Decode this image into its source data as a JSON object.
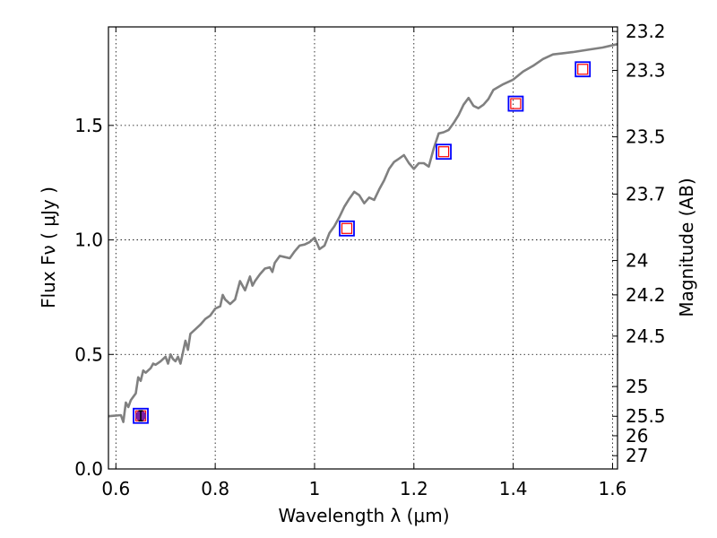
{
  "chart_data": {
    "type": "line",
    "xlabel": "Wavelength  λ (μm)",
    "ylabel": "Flux  Fν  ( μJy )",
    "ylabel_right": "Magnitude (AB)",
    "xlim": [
      0.585,
      1.61
    ],
    "ylim": [
      0.0,
      1.93
    ],
    "x_ticks": [
      0.6,
      0.8,
      1.0,
      1.2,
      1.4,
      1.6
    ],
    "x_tick_labels": [
      "0.6",
      "0.8",
      "1",
      "1.2",
      "1.4",
      "1.6"
    ],
    "y_ticks": [
      0.0,
      0.5,
      1.0,
      1.5
    ],
    "y_tick_labels": [
      "0.0",
      "0.5",
      "1.0",
      "1.5"
    ],
    "mag_ticks": [
      {
        "label": "23.2",
        "flux": 1.91
      },
      {
        "label": "23.3",
        "flux": 1.74
      },
      {
        "label": "23.5",
        "flux": 1.45
      },
      {
        "label": "23.7",
        "flux": 1.2
      },
      {
        "label": "24",
        "flux": 0.91
      },
      {
        "label": "24.2",
        "flux": 0.76
      },
      {
        "label": "24.5",
        "flux": 0.58
      },
      {
        "label": "25",
        "flux": 0.36
      },
      {
        "label": "25.5",
        "flux": 0.23
      },
      {
        "label": "26",
        "flux": 0.145
      },
      {
        "label": "27",
        "flux": 0.058
      }
    ],
    "grid": true,
    "colors": {
      "model": "#808080",
      "model_square": "#0000ff",
      "observed_square": "#ff0000",
      "observed_point": "#7a1fa2",
      "axes": "#000000"
    },
    "series": [
      {
        "kind": "line",
        "x": [
          0.585,
          0.61,
          0.615,
          0.62,
          0.625,
          0.63,
          0.64,
          0.645,
          0.65,
          0.655,
          0.66,
          0.67,
          0.675,
          0.68,
          0.69,
          0.7,
          0.705,
          0.71,
          0.715,
          0.72,
          0.725,
          0.73,
          0.74,
          0.745,
          0.75,
          0.76,
          0.77,
          0.78,
          0.79,
          0.8,
          0.81,
          0.815,
          0.82,
          0.825,
          0.83,
          0.84,
          0.85,
          0.86,
          0.87,
          0.875,
          0.88,
          0.89,
          0.9,
          0.91,
          0.915,
          0.92,
          0.93,
          0.94,
          0.95,
          0.96,
          0.97,
          0.98,
          0.99,
          1.0,
          1.01,
          1.02,
          1.03,
          1.04,
          1.05,
          1.06,
          1.07,
          1.08,
          1.09,
          1.1,
          1.11,
          1.12,
          1.13,
          1.14,
          1.15,
          1.16,
          1.17,
          1.18,
          1.19,
          1.2,
          1.21,
          1.22,
          1.23,
          1.24,
          1.25,
          1.26,
          1.27,
          1.28,
          1.29,
          1.3,
          1.31,
          1.32,
          1.33,
          1.34,
          1.35,
          1.36,
          1.38,
          1.4,
          1.42,
          1.44,
          1.46,
          1.48,
          1.5,
          1.52,
          1.55,
          1.58,
          1.61
        ],
        "values": [
          0.23,
          0.235,
          0.205,
          0.29,
          0.27,
          0.3,
          0.33,
          0.4,
          0.385,
          0.43,
          0.42,
          0.44,
          0.46,
          0.455,
          0.47,
          0.49,
          0.46,
          0.5,
          0.48,
          0.47,
          0.49,
          0.46,
          0.56,
          0.52,
          0.59,
          0.61,
          0.63,
          0.655,
          0.67,
          0.7,
          0.71,
          0.76,
          0.74,
          0.73,
          0.72,
          0.74,
          0.82,
          0.78,
          0.84,
          0.8,
          0.82,
          0.85,
          0.875,
          0.88,
          0.86,
          0.9,
          0.93,
          0.925,
          0.92,
          0.95,
          0.975,
          0.98,
          0.99,
          1.01,
          0.96,
          0.975,
          1.03,
          1.06,
          1.1,
          1.145,
          1.18,
          1.21,
          1.195,
          1.16,
          1.185,
          1.175,
          1.22,
          1.26,
          1.31,
          1.34,
          1.355,
          1.37,
          1.335,
          1.31,
          1.335,
          1.335,
          1.32,
          1.4,
          1.465,
          1.47,
          1.48,
          1.51,
          1.545,
          1.59,
          1.62,
          1.585,
          1.575,
          1.59,
          1.615,
          1.655,
          1.68,
          1.7,
          1.735,
          1.76,
          1.79,
          1.81,
          1.815,
          1.82,
          1.83,
          1.84,
          1.855
        ]
      },
      {
        "kind": "squares_blue",
        "x": [
          0.65,
          1.065,
          1.26,
          1.405,
          1.54
        ],
        "values": [
          0.232,
          1.05,
          1.385,
          1.595,
          1.745
        ]
      },
      {
        "kind": "squares_red",
        "x": [
          0.65,
          1.065,
          1.26,
          1.405,
          1.54
        ],
        "values": [
          0.232,
          1.05,
          1.385,
          1.595,
          1.745
        ]
      },
      {
        "kind": "point_errorbar",
        "x": [
          0.65
        ],
        "values": [
          0.232
        ],
        "errors": [
          0.022
        ]
      }
    ]
  }
}
